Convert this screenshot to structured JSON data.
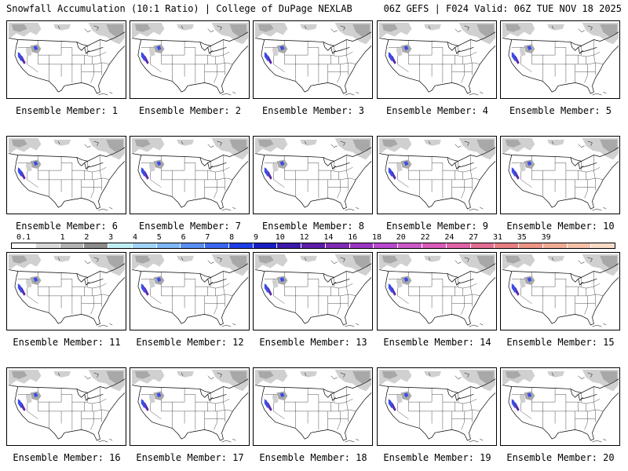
{
  "header": {
    "left": "Snowfall Accumulation (10:1 Ratio) | College of DuPage NEXLAB",
    "right": "06Z GEFS | F024 Valid: 06Z TUE NOV 18 2025"
  },
  "panels": [
    {
      "label": "Ensemble Member: 1"
    },
    {
      "label": "Ensemble Member: 2"
    },
    {
      "label": "Ensemble Member: 3"
    },
    {
      "label": "Ensemble Member: 4"
    },
    {
      "label": "Ensemble Member: 5"
    },
    {
      "label": "Ensemble Member: 6"
    },
    {
      "label": "Ensemble Member: 7"
    },
    {
      "label": "Ensemble Member: 8"
    },
    {
      "label": "Ensemble Member: 9"
    },
    {
      "label": "Ensemble Member: 10"
    },
    {
      "label": "Ensemble Member: 11"
    },
    {
      "label": "Ensemble Member: 12"
    },
    {
      "label": "Ensemble Member: 13"
    },
    {
      "label": "Ensemble Member: 14"
    },
    {
      "label": "Ensemble Member: 15"
    },
    {
      "label": "Ensemble Member: 16"
    },
    {
      "label": "Ensemble Member: 17"
    },
    {
      "label": "Ensemble Member: 18"
    },
    {
      "label": "Ensemble Member: 19"
    },
    {
      "label": "Ensemble Member: 20"
    }
  ],
  "colorbar": {
    "labels": [
      "0.1",
      "1",
      "2",
      "3",
      "4",
      "5",
      "6",
      "7",
      "8",
      "9",
      "10",
      "12",
      "14",
      "16",
      "18",
      "20",
      "22",
      "24",
      "27",
      "31",
      "35",
      "39"
    ],
    "colors": [
      "#ffffff",
      "#d9d9d9",
      "#b3b3b3",
      "#8c8c8c",
      "#bfeff4",
      "#9fd3f7",
      "#7fb6f5",
      "#5a8ff2",
      "#3a67ee",
      "#1e3fe6",
      "#1a1fc4",
      "#3b1aa8",
      "#5c1ea8",
      "#7e2ab5",
      "#9a36c2",
      "#b848cf",
      "#cc59c9",
      "#d95cb8",
      "#e064a6",
      "#e46e93",
      "#e77e84",
      "#ec9486",
      "#f0ab95",
      "#f4c2a9",
      "#f9ddc9"
    ]
  },
  "map_colors": {
    "light_snow": "#d0d0d0",
    "med_snow": "#a8a8a8",
    "blue": "#3a4de8",
    "purple": "#5a2aa8"
  }
}
